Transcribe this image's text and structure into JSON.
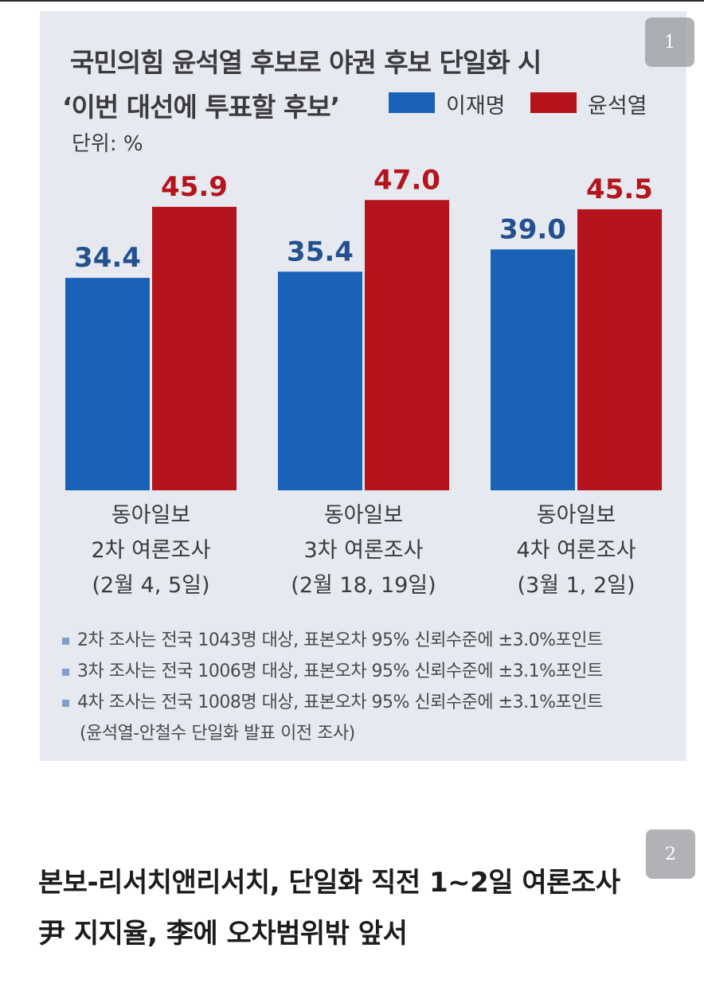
{
  "page": {
    "badge_1": "1",
    "badge_2": "2"
  },
  "chart_data": {
    "type": "bar",
    "title_line1": "국민의힘 윤석열 후보로 야권 후보 단일화 시",
    "title_line2": "‘이번 대선에 투표할 후보’",
    "unit": "단위: %",
    "legend_position": "top-right",
    "categories": [
      [
        "동아일보",
        "2차 여론조사",
        "(2월 4, 5일)"
      ],
      [
        "동아일보",
        "3차 여론조사",
        "(2월 18, 19일)"
      ],
      [
        "동아일보",
        "4차 여론조사",
        "(3월 1, 2일)"
      ]
    ],
    "series": [
      {
        "name": "이재명",
        "color": "#1a62b8",
        "label_color": "#23508f",
        "values": [
          34.4,
          35.4,
          39.0
        ],
        "labels": [
          "34.4",
          "35.4",
          "39.0"
        ]
      },
      {
        "name": "윤석열",
        "color": "#b5141c",
        "label_color": "#b5141c",
        "values": [
          45.9,
          47.0,
          45.5
        ],
        "labels": [
          "45.9",
          "47.0",
          "45.5"
        ]
      }
    ],
    "ylim": [
      0,
      50
    ],
    "grid": false,
    "notes": [
      "2차 조사는 전국 1043명 대상, 표본오차 95% 신뢰수준에 ±3.0%포인트",
      "3차 조사는 전국 1006명 대상, 표본오차 95% 신뢰수준에 ±3.1%포인트",
      "4차 조사는 전국 1008명 대상, 표본오차 95% 신뢰수준에 ±3.1%포인트"
    ],
    "note_continuation": "(윤석열-안철수 단일화 발표 이전 조사)"
  },
  "article": {
    "headline_line1": "본보-리서치앤리서치, 단일화 직전 1~2일 여론조사",
    "headline_line2": "尹 지지율, 李에 오차범위밖 앞서"
  }
}
